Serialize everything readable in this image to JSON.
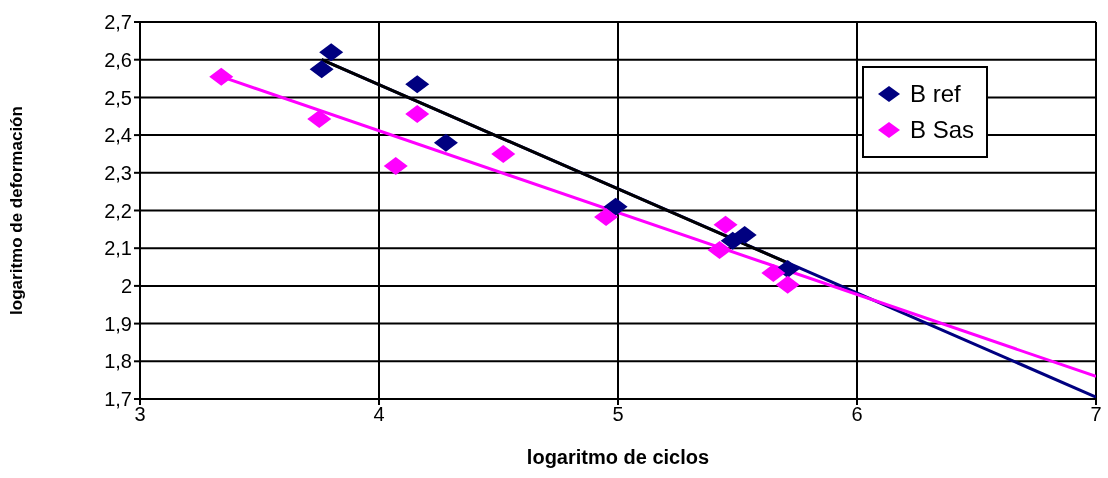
{
  "chart_data": {
    "type": "scatter",
    "xlabel": "logaritmo de ciclos",
    "ylabel": "logaritmo de deformación",
    "xlim": [
      3,
      7
    ],
    "xticks": [
      3,
      4,
      5,
      6,
      7
    ],
    "ylim": [
      1.7,
      2.7
    ],
    "yticks": [
      {
        "value": 1.7,
        "label": "1,7"
      },
      {
        "value": 1.8,
        "label": "1,8"
      },
      {
        "value": 1.9,
        "label": "1,9"
      },
      {
        "value": 2,
        "label": "2"
      },
      {
        "value": 2.1,
        "label": "2,1"
      },
      {
        "value": 2.2,
        "label": "2,2"
      },
      {
        "value": 2.3,
        "label": "2,3"
      },
      {
        "value": 2.4,
        "label": "2,4"
      },
      {
        "value": 2.5,
        "label": "2,5"
      },
      {
        "value": 2.6,
        "label": "2,6"
      },
      {
        "value": 2.7,
        "label": "2,7"
      }
    ],
    "grid": true,
    "legend": "top right",
    "series": [
      {
        "type": "line",
        "color": "#000080",
        "marker": "none",
        "x": [
          3.76,
          7
        ],
        "values": [
          2.6,
          1.705
        ]
      },
      {
        "type": "line",
        "color": "#000000",
        "marker": "none",
        "x": [
          3.76,
          5.71
        ],
        "values": [
          2.6,
          2.061
        ]
      },
      {
        "type": "line",
        "color": "#ff00ff",
        "marker": "none",
        "x": [
          3.34,
          7
        ],
        "values": [
          2.555,
          1.76
        ]
      },
      {
        "name": "B ref",
        "color": "#000080",
        "marker": "diamond",
        "x": [
          3.76,
          3.8,
          4.16,
          4.28,
          4.99,
          5.48,
          5.53,
          5.71
        ],
        "values": [
          2.575,
          2.62,
          2.535,
          2.38,
          2.21,
          2.12,
          2.135,
          2.045
        ]
      },
      {
        "name": "B Sas",
        "color": "#ff00ff",
        "marker": "diamond",
        "x": [
          3.34,
          3.75,
          4.07,
          4.16,
          4.52,
          4.95,
          5.425,
          5.45,
          5.65,
          5.71
        ],
        "values": [
          2.555,
          2.443,
          2.318,
          2.456,
          2.35,
          2.183,
          2.095,
          2.162,
          2.034,
          2.003
        ]
      }
    ]
  }
}
